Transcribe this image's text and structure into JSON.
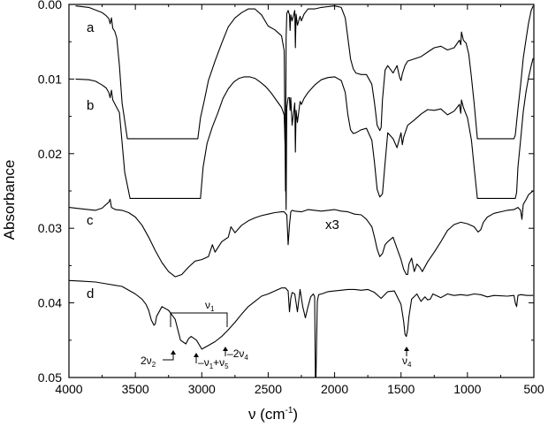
{
  "chart_data": {
    "type": "line",
    "title": "",
    "xlabel": "ν (cm⁻¹)",
    "xlabel_parts": [
      "ν (cm",
      "-1",
      ")"
    ],
    "ylabel": "Absorbance",
    "xlim": [
      4000,
      500
    ],
    "ylim": [
      0.05,
      0.0
    ],
    "x_inverted": true,
    "y_inverted": true,
    "grid": false,
    "x_ticks": [
      4000,
      3500,
      3000,
      2500,
      2000,
      1500,
      1000,
      500
    ],
    "x_tick_labels": [
      "4000",
      "3500",
      "3000",
      "2500",
      "2000",
      "1500",
      "1000",
      "500"
    ],
    "y_ticks": [
      0.0,
      0.01,
      0.02,
      0.03,
      0.04,
      0.05
    ],
    "y_tick_labels": [
      "0.00",
      "0.01",
      "0.02",
      "0.03",
      "0.04",
      "0.05"
    ],
    "series": [
      {
        "name": "a",
        "x": [
          3950,
          3850,
          3750,
          3720,
          3700,
          3690,
          3680,
          3670,
          3655,
          3640,
          3620,
          3600,
          3560,
          3030,
          3010,
          2980,
          2950,
          2900,
          2850,
          2800,
          2750,
          2700,
          2650,
          2600,
          2550,
          2500,
          2450,
          2400,
          2380,
          2370,
          2365,
          2360,
          2350,
          2340,
          2335,
          2330,
          2320,
          2300,
          2295,
          2290,
          2280,
          2260,
          2250,
          2230,
          2200,
          2150,
          2100,
          2050,
          2000,
          1950,
          1920,
          1900,
          1880,
          1860,
          1840,
          1800,
          1760,
          1720,
          1700,
          1680,
          1660,
          1650,
          1640,
          1620,
          1600,
          1560,
          1530,
          1510,
          1500,
          1490,
          1470,
          1450,
          1400,
          1350,
          1300,
          1250,
          1200,
          1150,
          1100,
          1060,
          1050,
          1045,
          1030,
          1010,
          990,
          970,
          950,
          930,
          925,
          650,
          640,
          620,
          600,
          580,
          560,
          540,
          520,
          505
        ],
        "y": [
          0.0002,
          0.0004,
          0.0011,
          0.0015,
          0.0019,
          0.0026,
          0.0018,
          0.0032,
          0.0036,
          0.0045,
          0.0082,
          0.0132,
          0.018,
          0.018,
          0.0152,
          0.0128,
          0.0102,
          0.0076,
          0.0052,
          0.003,
          0.0018,
          0.0011,
          0.0006,
          0.0006,
          0.0014,
          0.0029,
          0.0034,
          0.0042,
          0.0062,
          0.025,
          0.0045,
          0.0012,
          0.0008,
          0.0014,
          0.0035,
          0.0014,
          0.0022,
          0.0008,
          0.0058,
          0.0013,
          0.0028,
          0.0016,
          0.0022,
          0.0013,
          0.0006,
          0.0006,
          0.0004,
          0.0003,
          0.0002,
          0.0004,
          0.0018,
          0.0045,
          0.0073,
          0.0086,
          0.0092,
          0.0094,
          0.0094,
          0.0107,
          0.0132,
          0.0162,
          0.0169,
          0.0165,
          0.0128,
          0.0088,
          0.0082,
          0.0092,
          0.0082,
          0.0098,
          0.0102,
          0.0093,
          0.0082,
          0.0076,
          0.0073,
          0.007,
          0.0064,
          0.0058,
          0.0056,
          0.0061,
          0.0058,
          0.0048,
          0.0054,
          0.0037,
          0.0048,
          0.0052,
          0.0067,
          0.0098,
          0.0132,
          0.0171,
          0.018,
          0.018,
          0.0175,
          0.014,
          0.0108,
          0.0072,
          0.0048,
          0.0025,
          0.0008,
          0.0002
        ]
      },
      {
        "name": "b",
        "x": [
          3950,
          3850,
          3800,
          3750,
          3720,
          3700,
          3690,
          3680,
          3670,
          3650,
          3620,
          3600,
          3580,
          3540,
          3010,
          2990,
          2960,
          2920,
          2880,
          2840,
          2800,
          2760,
          2720,
          2680,
          2640,
          2600,
          2560,
          2520,
          2480,
          2440,
          2400,
          2380,
          2370,
          2365,
          2360,
          2350,
          2340,
          2335,
          2330,
          2320,
          2300,
          2295,
          2290,
          2280,
          2260,
          2250,
          2230,
          2200,
          2150,
          2100,
          2050,
          2000,
          1950,
          1920,
          1900,
          1880,
          1860,
          1840,
          1800,
          1760,
          1720,
          1700,
          1680,
          1660,
          1640,
          1620,
          1600,
          1560,
          1530,
          1500,
          1490,
          1480,
          1450,
          1400,
          1350,
          1300,
          1250,
          1200,
          1150,
          1100,
          1060,
          1050,
          1045,
          1030,
          1000,
          970,
          950,
          930,
          925,
          640,
          630,
          620,
          600,
          580,
          560,
          540,
          520,
          505
        ],
        "y": [
          0.01,
          0.0101,
          0.0103,
          0.0108,
          0.0112,
          0.0118,
          0.0125,
          0.0115,
          0.0128,
          0.0135,
          0.0145,
          0.0185,
          0.0225,
          0.026,
          0.026,
          0.0218,
          0.0186,
          0.0164,
          0.0146,
          0.0126,
          0.0113,
          0.0104,
          0.0099,
          0.0097,
          0.0097,
          0.0099,
          0.0104,
          0.011,
          0.0118,
          0.0128,
          0.0138,
          0.0148,
          0.0205,
          0.0275,
          0.0138,
          0.0125,
          0.0125,
          0.0142,
          0.0125,
          0.0162,
          0.0132,
          0.0198,
          0.0142,
          0.0158,
          0.013,
          0.0134,
          0.0126,
          0.0118,
          0.0108,
          0.0101,
          0.0098,
          0.0097,
          0.0102,
          0.0118,
          0.0148,
          0.0168,
          0.0173,
          0.0172,
          0.0168,
          0.0166,
          0.0182,
          0.0212,
          0.0248,
          0.0258,
          0.0254,
          0.0212,
          0.0172,
          0.018,
          0.0192,
          0.0172,
          0.0188,
          0.0178,
          0.0162,
          0.0155,
          0.0147,
          0.0141,
          0.0142,
          0.014,
          0.0148,
          0.0143,
          0.0134,
          0.0146,
          0.0128,
          0.0138,
          0.0152,
          0.0182,
          0.0218,
          0.0252,
          0.026,
          0.026,
          0.0252,
          0.0218,
          0.0182,
          0.0144,
          0.0118,
          0.0098,
          0.0082,
          0.0072
        ]
      },
      {
        "name": "c",
        "x": [
          4000,
          3900,
          3800,
          3750,
          3720,
          3700,
          3690,
          3680,
          3650,
          3600,
          3550,
          3500,
          3450,
          3400,
          3350,
          3300,
          3250,
          3200,
          3150,
          3100,
          3050,
          3000,
          2950,
          2920,
          2900,
          2850,
          2800,
          2780,
          2750,
          2700,
          2650,
          2600,
          2550,
          2500,
          2450,
          2400,
          2380,
          2360,
          2350,
          2340,
          2330,
          2320,
          2300,
          2250,
          2200,
          2150,
          2100,
          2050,
          2000,
          1950,
          1900,
          1850,
          1800,
          1760,
          1720,
          1700,
          1680,
          1660,
          1640,
          1620,
          1600,
          1560,
          1540,
          1500,
          1480,
          1460,
          1450,
          1440,
          1420,
          1400,
          1380,
          1360,
          1340,
          1300,
          1250,
          1200,
          1150,
          1100,
          1050,
          1000,
          950,
          920,
          900,
          880,
          850,
          800,
          750,
          700,
          650,
          620,
          600,
          590,
          580,
          560,
          540,
          520,
          505
        ],
        "y": [
          0.0272,
          0.0274,
          0.0276,
          0.0273,
          0.0268,
          0.0265,
          0.0261,
          0.0272,
          0.0275,
          0.0276,
          0.0279,
          0.0285,
          0.0296,
          0.0312,
          0.033,
          0.0346,
          0.0358,
          0.0365,
          0.0362,
          0.0352,
          0.0344,
          0.0342,
          0.0338,
          0.0322,
          0.0332,
          0.0318,
          0.0312,
          0.0298,
          0.0306,
          0.0296,
          0.029,
          0.0286,
          0.0283,
          0.0281,
          0.0279,
          0.0278,
          0.0278,
          0.0282,
          0.0322,
          0.0296,
          0.0278,
          0.0276,
          0.0277,
          0.0278,
          0.0275,
          0.0276,
          0.0277,
          0.0276,
          0.0275,
          0.0277,
          0.0278,
          0.0281,
          0.0282,
          0.0288,
          0.0298,
          0.0312,
          0.0328,
          0.0338,
          0.0334,
          0.0322,
          0.0318,
          0.0312,
          0.0322,
          0.0342,
          0.0355,
          0.0362,
          0.0362,
          0.0348,
          0.034,
          0.0358,
          0.0348,
          0.0352,
          0.0358,
          0.0345,
          0.0332,
          0.0318,
          0.0303,
          0.0295,
          0.0292,
          0.0294,
          0.0298,
          0.0305,
          0.0302,
          0.0292,
          0.0285,
          0.028,
          0.0278,
          0.0276,
          0.0275,
          0.0272,
          0.0276,
          0.0288,
          0.0268,
          0.0262,
          0.0255,
          0.0252,
          0.025
        ]
      },
      {
        "name": "d",
        "x": [
          4000,
          3900,
          3800,
          3700,
          3600,
          3500,
          3450,
          3420,
          3400,
          3380,
          3360,
          3350,
          3340,
          3300,
          3250,
          3200,
          3160,
          3120,
          3100,
          3080,
          3040,
          3000,
          2960,
          2930,
          2900,
          2850,
          2800,
          2750,
          2700,
          2650,
          2600,
          2550,
          2500,
          2450,
          2400,
          2370,
          2350,
          2340,
          2330,
          2320,
          2300,
          2280,
          2260,
          2240,
          2220,
          2200,
          2180,
          2160,
          2150,
          2145,
          2140,
          2130,
          2120,
          2100,
          2080,
          2050,
          2000,
          1950,
          1900,
          1850,
          1800,
          1750,
          1700,
          1650,
          1600,
          1550,
          1500,
          1480,
          1470,
          1460,
          1450,
          1440,
          1420,
          1380,
          1350,
          1320,
          1300,
          1280,
          1260,
          1200,
          1150,
          1100,
          1050,
          1000,
          950,
          900,
          850,
          800,
          700,
          650,
          640,
          630,
          620,
          600,
          550,
          505
        ],
        "y": [
          0.037,
          0.0371,
          0.0372,
          0.0375,
          0.0378,
          0.0388,
          0.0395,
          0.0402,
          0.041,
          0.0423,
          0.043,
          0.0428,
          0.0418,
          0.0405,
          0.041,
          0.0422,
          0.045,
          0.0455,
          0.0448,
          0.0445,
          0.045,
          0.0462,
          0.0458,
          0.0455,
          0.0452,
          0.0445,
          0.0436,
          0.0426,
          0.0415,
          0.0405,
          0.0398,
          0.0391,
          0.0388,
          0.0384,
          0.038,
          0.038,
          0.0384,
          0.0412,
          0.0394,
          0.0386,
          0.0388,
          0.0412,
          0.0382,
          0.0405,
          0.042,
          0.0405,
          0.0392,
          0.0388,
          0.0392,
          0.05,
          0.05,
          0.0398,
          0.0389,
          0.0388,
          0.0387,
          0.0385,
          0.0384,
          0.0383,
          0.0382,
          0.0382,
          0.0383,
          0.0382,
          0.0386,
          0.0394,
          0.0385,
          0.0384,
          0.0402,
          0.0425,
          0.0442,
          0.0445,
          0.0436,
          0.0418,
          0.0395,
          0.0388,
          0.0398,
          0.0392,
          0.0396,
          0.0395,
          0.0388,
          0.0393,
          0.0388,
          0.039,
          0.0389,
          0.039,
          0.0388,
          0.0389,
          0.0392,
          0.039,
          0.0391,
          0.039,
          0.04,
          0.0405,
          0.039,
          0.0389,
          0.039,
          0.039
        ]
      }
    ],
    "annotations": {
      "x3": "x3",
      "nu1": {
        "base": "ν",
        "sub": "1"
      },
      "two_nu2": {
        "pre": "2ν",
        "sub": "2"
      },
      "nu1_nu5": {
        "a": "ν",
        "a_sub": "1",
        "plus": "+ν",
        "b_sub": "5"
      },
      "two_nu4": {
        "pre": "2ν",
        "sub": "4"
      },
      "nu4": {
        "base": "ν",
        "sub": "4"
      }
    }
  }
}
